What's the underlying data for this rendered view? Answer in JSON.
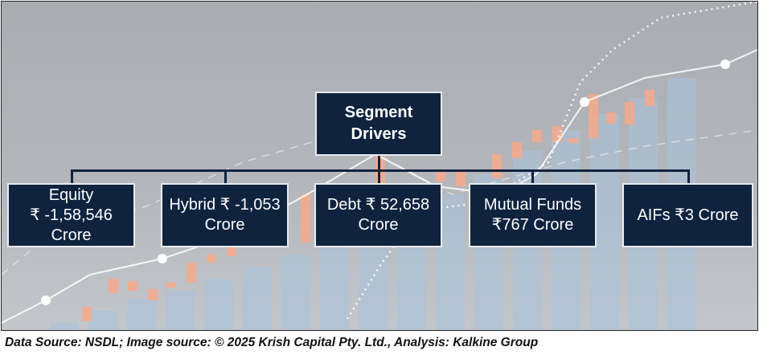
{
  "diagram": {
    "root": {
      "line1": "Segment",
      "line2": "Drivers"
    },
    "children": [
      {
        "line1": "Equity",
        "line2": "₹ -1,58,546",
        "line3": "Crore"
      },
      {
        "line1": "Hybrid ₹ -1,053",
        "line2": "Crore"
      },
      {
        "line1": "Debt ₹ 52,658",
        "line2": "Crore"
      },
      {
        "line1": "Mutual Funds",
        "line2": "₹767 Crore"
      },
      {
        "line1": "AIFs ₹3 Crore"
      }
    ]
  },
  "caption": "Data Source: NSDL; Image source: © 2025 Krish Capital Pty. Ltd., Analysis: Kalkine Group",
  "colors": {
    "box": "#0f233f",
    "bar": "#a9c3dd",
    "candle": "#f7a98a"
  }
}
